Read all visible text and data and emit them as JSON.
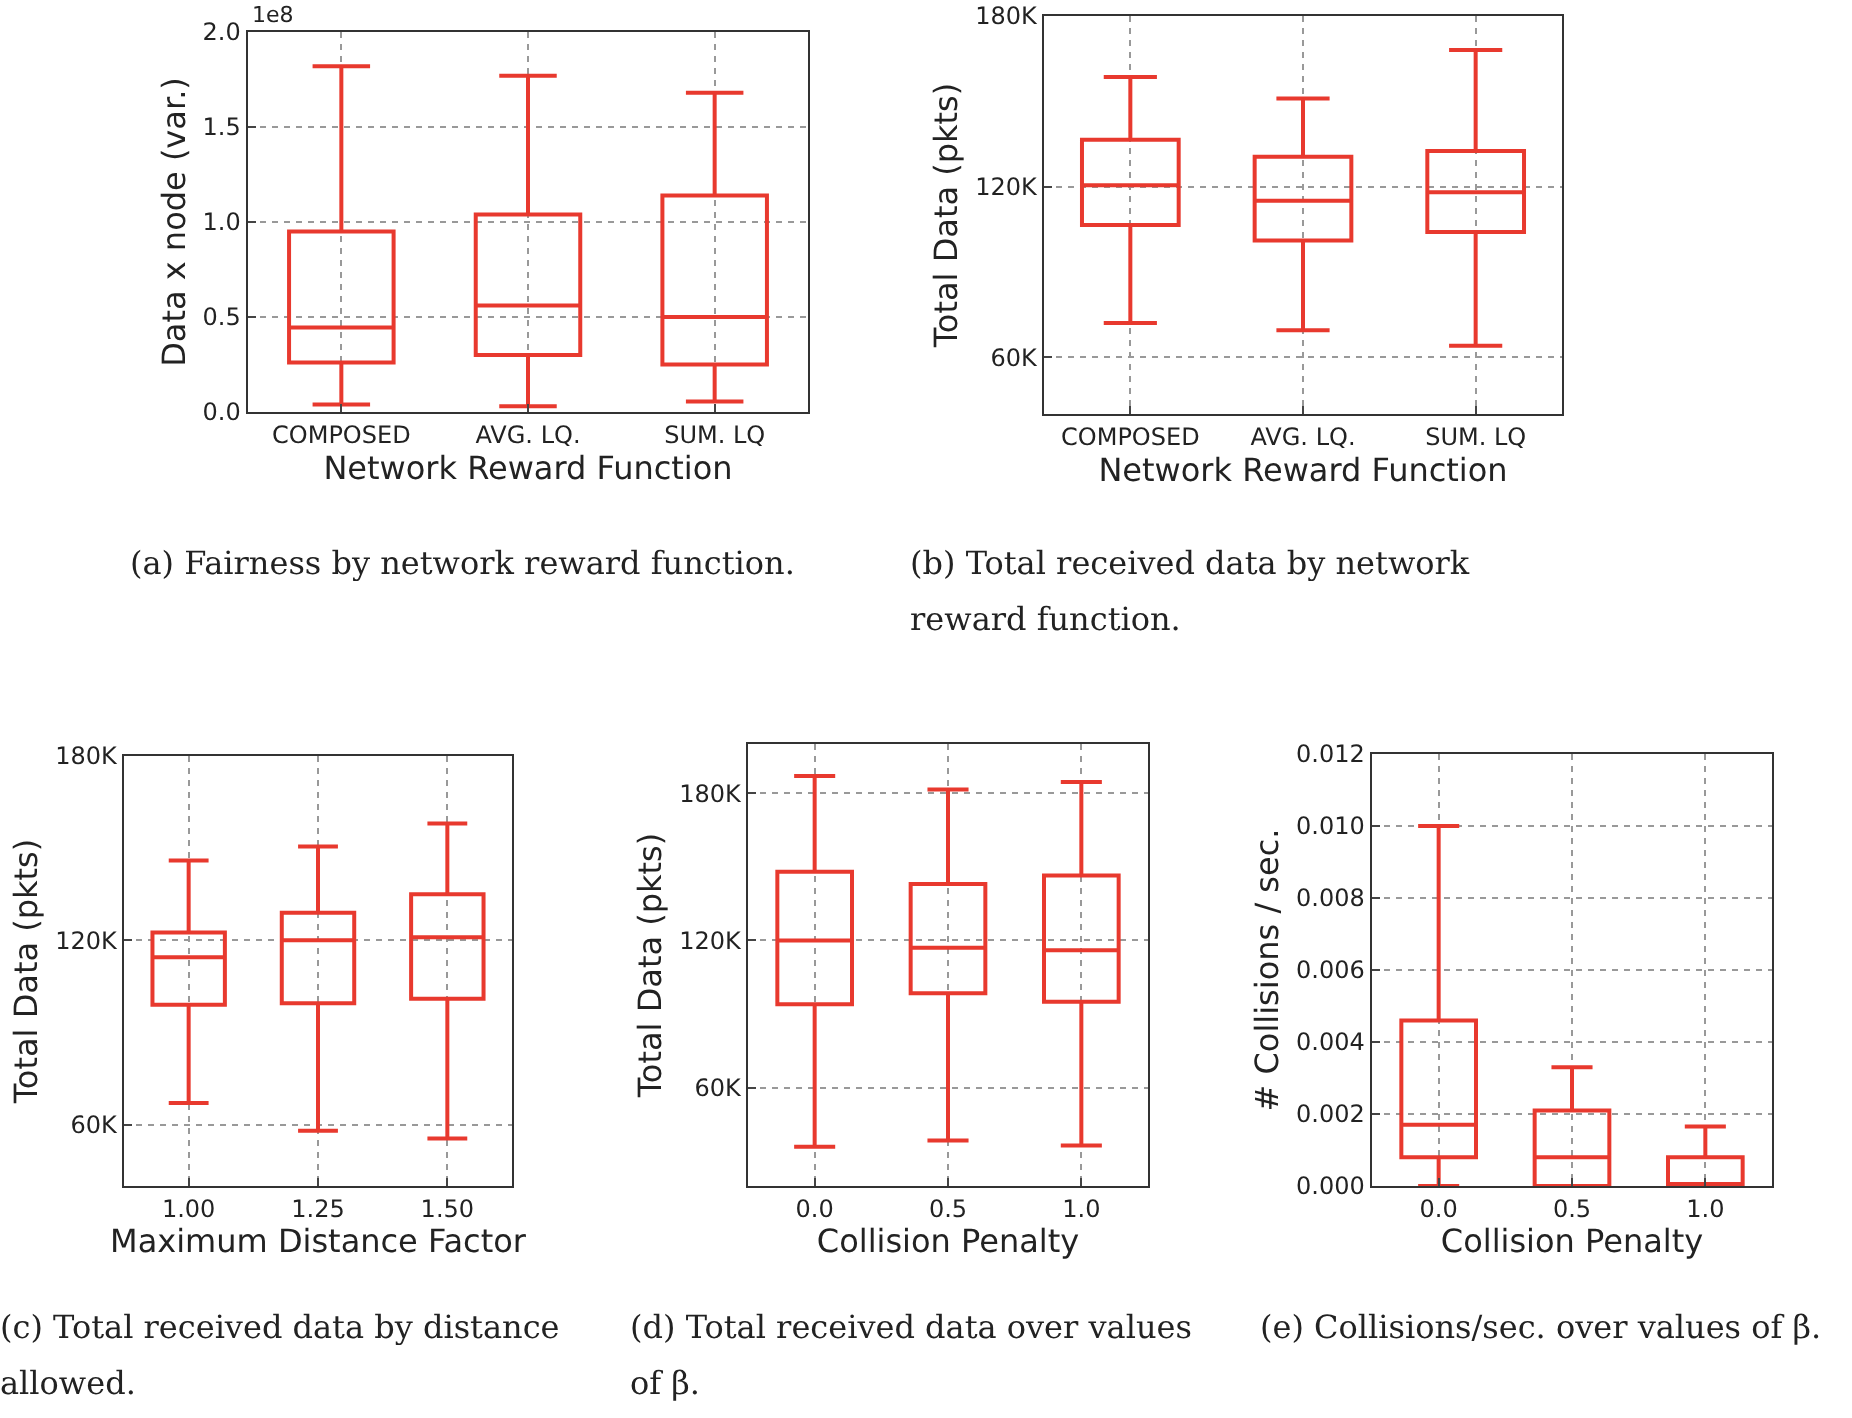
{
  "chart_data": [
    {
      "type": "box",
      "categories": [
        "COMPOSED",
        "AVG. LQ.",
        "SUM. LQ"
      ],
      "xlabel": "Network Reward Function",
      "ylabel": "Data x node (var.)",
      "ylim": [
        0,
        2.0
      ],
      "yticks": [
        {
          "value": 0,
          "label": "0.0"
        },
        0.5,
        {
          "value": 1,
          "label": "1.0"
        },
        1.5,
        {
          "value": 2,
          "label": "2.0"
        }
      ],
      "grid": true,
      "series": [
        {
          "color": "#e8392e",
          "boxes": [
            {
              "low": 0.04,
              "q1": 0.26,
              "median": 0.445,
              "q3": 0.95,
              "high": 1.82
            },
            {
              "low": 0.03,
              "q1": 0.3,
              "median": 0.56,
              "q3": 1.04,
              "high": 1.77
            },
            {
              "low": 0.055,
              "q1": 0.25,
              "median": 0.5,
              "q3": 1.14,
              "high": 1.68
            }
          ]
        }
      ],
      "annotations": [
        "1e8",
        "(a)  Fairness by network reward function."
      ]
    },
    {
      "type": "box",
      "categories": [
        "COMPOSED",
        "AVG. LQ.",
        "SUM. LQ"
      ],
      "xlabel": "Network Reward Function",
      "ylabel": "Total Data (pkts)",
      "ylim": [
        40000,
        180000
      ],
      "yticks": [
        {
          "value": 60000,
          "label": "60K"
        },
        {
          "value": 120000,
          "label": "120K"
        },
        {
          "value": 180000,
          "label": "180K"
        }
      ],
      "grid": true,
      "series": [
        {
          "color": "#e8392e",
          "boxes": [
            {
              "low": 72000,
              "q1": 106500,
              "median": 120500,
              "q3": 136500,
              "high": 158500
            },
            {
              "low": 69500,
              "q1": 101000,
              "median": 115000,
              "q3": 130500,
              "high": 151000
            },
            {
              "low": 64000,
              "q1": 104000,
              "median": 118000,
              "q3": 132500,
              "high": 168000
            }
          ]
        }
      ],
      "annotations": [
        "(b)  Total received data by network reward function."
      ]
    },
    {
      "type": "box",
      "categories": [
        "1.00",
        "1.25",
        "1.50"
      ],
      "xlabel": "Maximum Distance Factor",
      "ylabel": "Total Data (pkts)",
      "ylim": [
        40000,
        180000
      ],
      "yticks": [
        {
          "value": 60000,
          "label": "60K"
        },
        {
          "value": 120000,
          "label": "120K"
        },
        {
          "value": 180000,
          "label": "180K"
        }
      ],
      "grid": true,
      "series": [
        {
          "color": "#e8392e",
          "boxes": [
            {
              "low": 67000,
              "q1": 99000,
              "median": 114500,
              "q3": 122500,
              "high": 146000
            },
            {
              "low": 58000,
              "q1": 99500,
              "median": 120000,
              "q3": 129000,
              "high": 150500
            },
            {
              "low": 55500,
              "q1": 101000,
              "median": 121000,
              "q3": 135000,
              "high": 158000
            }
          ]
        }
      ],
      "annotations": [
        "(c)  Total received data by distance allowed."
      ]
    },
    {
      "type": "box",
      "categories": [
        "0.0",
        "0.5",
        "1.0"
      ],
      "xlabel": "Collision Penalty",
      "ylabel": "Total Data (pkts)",
      "ylim": [
        20000,
        200000
      ],
      "yticks": [
        {
          "value": 60000,
          "label": "60K"
        },
        {
          "value": 120000,
          "label": "120K"
        },
        {
          "value": 180000,
          "label": "180K"
        }
      ],
      "grid": true,
      "series": [
        {
          "color": "#e8392e",
          "boxes": [
            {
              "low": 36000,
              "q1": 94000,
              "median": 120000,
              "q3": 148000,
              "high": 187000
            },
            {
              "low": 38500,
              "q1": 98500,
              "median": 117000,
              "q3": 143000,
              "high": 181500
            },
            {
              "low": 36500,
              "q1": 95000,
              "median": 116000,
              "q3": 146500,
              "high": 184500
            }
          ]
        }
      ],
      "annotations": [
        "(d) Total received data over values of β."
      ]
    },
    {
      "type": "box",
      "categories": [
        "0.0",
        "0.5",
        "1.0"
      ],
      "xlabel": "Collision Penalty",
      "ylabel": "# Collisions / sec.",
      "ylim": [
        0,
        0.012
      ],
      "yticks": [
        {
          "value": 0,
          "label": "0.000"
        },
        {
          "value": 0.002,
          "label": "0.002"
        },
        {
          "value": 0.004,
          "label": "0.004"
        },
        {
          "value": 0.006,
          "label": "0.006"
        },
        {
          "value": 0.008,
          "label": "0.008"
        },
        {
          "value": 0.01,
          "label": "0.010"
        },
        {
          "value": 0.012,
          "label": "0.012"
        }
      ],
      "grid": true,
      "series": [
        {
          "color": "#e8392e",
          "boxes": [
            {
              "low": 0,
              "q1": 0.0008,
              "median": 0.0017,
              "q3": 0.0046,
              "high": 0.01
            },
            {
              "low": 0,
              "q1": 0,
              "median": 0.0008,
              "q3": 0.0021,
              "high": 0.0033
            },
            {
              "low": 0,
              "q1": 0,
              "median": 0,
              "q3": 0.0008,
              "high": 0.00165
            }
          ]
        }
      ],
      "annotations": [
        "(e) Collisions/sec. over values of β."
      ]
    }
  ]
}
